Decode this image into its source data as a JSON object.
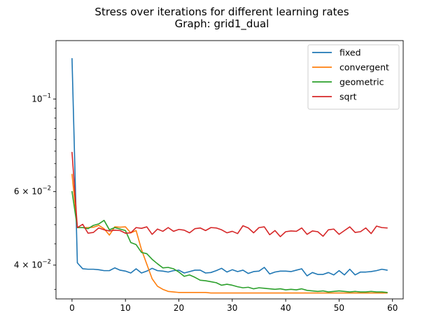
{
  "chart_data": {
    "type": "line",
    "title_line1": "Stress over iterations for different learning rates",
    "title_line2": "Graph: grid1_dual",
    "xlabel": "",
    "ylabel": "",
    "y_scale": "log",
    "xlim": [
      -3,
      62
    ],
    "ylim": [
      0.0332,
      0.138
    ],
    "x_ticks": [
      0,
      10,
      20,
      30,
      40,
      50,
      60
    ],
    "x_tick_labels": [
      "0",
      "10",
      "20",
      "30",
      "40",
      "50",
      "60"
    ],
    "y_ticks": [
      0.04,
      0.06,
      0.1
    ],
    "y_tick_labels": [
      "4 × 10^-2",
      "6 × 10^-2",
      "10^-1"
    ],
    "grid": false,
    "legend_position": "top-right",
    "series": [
      {
        "name": "fixed",
        "color": "#1f77b4",
        "values": [
          0.125,
          0.0405,
          0.0392,
          0.0391,
          0.0391,
          0.039,
          0.0388,
          0.0388,
          0.0394,
          0.0389,
          0.0387,
          0.0383,
          0.0392,
          0.0383,
          0.0387,
          0.0393,
          0.0388,
          0.0387,
          0.0385,
          0.0388,
          0.0389,
          0.0383,
          0.0386,
          0.0389,
          0.0389,
          0.0383,
          0.0384,
          0.0388,
          0.0393,
          0.0385,
          0.039,
          0.0386,
          0.0389,
          0.0382,
          0.0386,
          0.0387,
          0.0395,
          0.0381,
          0.0385,
          0.0387,
          0.0387,
          0.0386,
          0.0389,
          0.0392,
          0.0377,
          0.0384,
          0.038,
          0.038,
          0.0384,
          0.0379,
          0.0388,
          0.0379,
          0.0391,
          0.0379,
          0.0385,
          0.0385,
          0.0386,
          0.0388,
          0.0391,
          0.0389
        ]
      },
      {
        "name": "convergent",
        "color": "#ff7f0e",
        "values": [
          0.066,
          0.0492,
          0.0492,
          0.0492,
          0.0493,
          0.0498,
          0.0489,
          0.0472,
          0.0494,
          0.0493,
          0.0494,
          0.0478,
          0.0484,
          0.0436,
          0.0402,
          0.0371,
          0.0356,
          0.035,
          0.0346,
          0.0345,
          0.0344,
          0.0344,
          0.0344,
          0.0344,
          0.0344,
          0.0344,
          0.0343,
          0.0343,
          0.0343,
          0.0343,
          0.0343,
          0.0343,
          0.0343,
          0.0343,
          0.0343,
          0.0343,
          0.0343,
          0.0343,
          0.0343,
          0.0343,
          0.0343,
          0.0343,
          0.0343,
          0.0343,
          0.0343,
          0.0343,
          0.0343,
          0.0343,
          0.0343,
          0.0343,
          0.0343,
          0.0343,
          0.0343,
          0.0343,
          0.0343,
          0.0343,
          0.0343,
          0.0343,
          0.0343,
          0.0343
        ]
      },
      {
        "name": "geometric",
        "color": "#2ca02c",
        "values": [
          0.06,
          0.0492,
          0.0492,
          0.0489,
          0.0498,
          0.0502,
          0.0512,
          0.0486,
          0.0492,
          0.0488,
          0.0484,
          0.0453,
          0.0448,
          0.0429,
          0.0426,
          0.0413,
          0.0403,
          0.0394,
          0.0395,
          0.0392,
          0.0385,
          0.0376,
          0.0379,
          0.0374,
          0.0368,
          0.0367,
          0.0365,
          0.0363,
          0.0358,
          0.036,
          0.0358,
          0.0355,
          0.0353,
          0.0354,
          0.0351,
          0.0353,
          0.0352,
          0.0351,
          0.035,
          0.0351,
          0.0349,
          0.035,
          0.0349,
          0.0351,
          0.0348,
          0.0347,
          0.0346,
          0.0347,
          0.0345,
          0.0346,
          0.0347,
          0.0346,
          0.0345,
          0.0346,
          0.0345,
          0.0345,
          0.0346,
          0.0345,
          0.0345,
          0.0344
        ]
      },
      {
        "name": "sqrt",
        "color": "#d62728",
        "values": [
          0.0745,
          0.0492,
          0.0501,
          0.0477,
          0.0479,
          0.0491,
          0.0486,
          0.0483,
          0.0485,
          0.0484,
          0.0477,
          0.0478,
          0.0492,
          0.049,
          0.0494,
          0.0474,
          0.0488,
          0.0482,
          0.0492,
          0.0482,
          0.0487,
          0.0485,
          0.0478,
          0.0489,
          0.0491,
          0.0484,
          0.0492,
          0.0491,
          0.0486,
          0.0478,
          0.0482,
          0.0476,
          0.0497,
          0.0491,
          0.0478,
          0.0492,
          0.0494,
          0.0473,
          0.0484,
          0.0468,
          0.0481,
          0.0483,
          0.0482,
          0.0491,
          0.0474,
          0.0483,
          0.0481,
          0.0469,
          0.0486,
          0.0488,
          0.0474,
          0.0484,
          0.0494,
          0.0479,
          0.0481,
          0.0491,
          0.0476,
          0.0496,
          0.0492,
          0.0491
        ]
      }
    ]
  }
}
